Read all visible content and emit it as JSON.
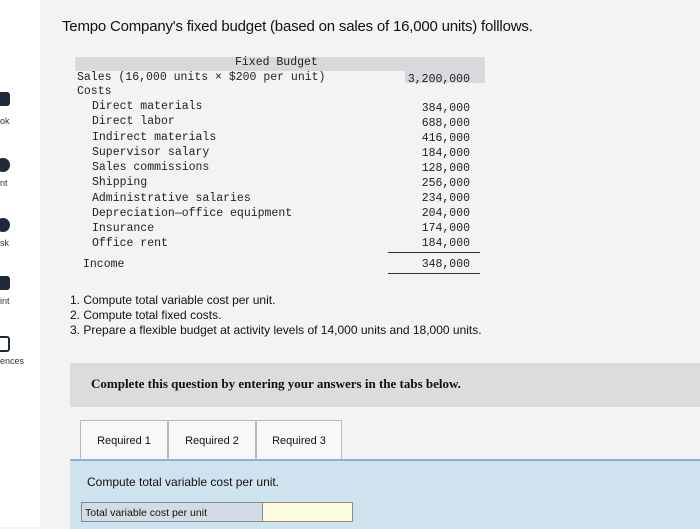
{
  "nav": {
    "items": [
      {
        "label": "ok"
      },
      {
        "label": "nt"
      },
      {
        "label": "sk"
      },
      {
        "label": "int"
      },
      {
        "label": "ences"
      }
    ]
  },
  "title": "Tempo Company's fixed budget (based on sales of 16,000 units) folllows.",
  "budget": {
    "header": "Fixed Budget",
    "sales_label": "Sales (16,000 units × $200 per unit)",
    "sales_value": "3,200,000",
    "costs_label": "Costs",
    "costs": [
      {
        "label": "Direct materials",
        "value": "384,000"
      },
      {
        "label": "Direct labor",
        "value": "688,000"
      },
      {
        "label": "Indirect materials",
        "value": "416,000"
      },
      {
        "label": "Supervisor salary",
        "value": "184,000"
      },
      {
        "label": "Sales commissions",
        "value": "128,000"
      },
      {
        "label": "Shipping",
        "value": "256,000"
      },
      {
        "label": "Administrative salaries",
        "value": "234,000"
      },
      {
        "label": "Depreciation—office equipment",
        "value": "204,000"
      },
      {
        "label": "Insurance",
        "value": "174,000"
      },
      {
        "label": "Office rent",
        "value": "184,000"
      }
    ],
    "income_label": "Income",
    "income_value": "348,000"
  },
  "questions": [
    "1. Compute total variable cost per unit.",
    "2. Compute total fixed costs.",
    "3. Prepare a flexible budget at activity levels of 14,000 units and 18,000 units."
  ],
  "instruction": "Complete this question by entering your answers in the tabs below.",
  "tabs": [
    {
      "label": "Required 1"
    },
    {
      "label": "Required 2"
    },
    {
      "label": "Required 3"
    }
  ],
  "panel": {
    "prompt": "Compute total variable cost per unit.",
    "answer_label": "Total variable cost per unit",
    "answer_value": ""
  }
}
